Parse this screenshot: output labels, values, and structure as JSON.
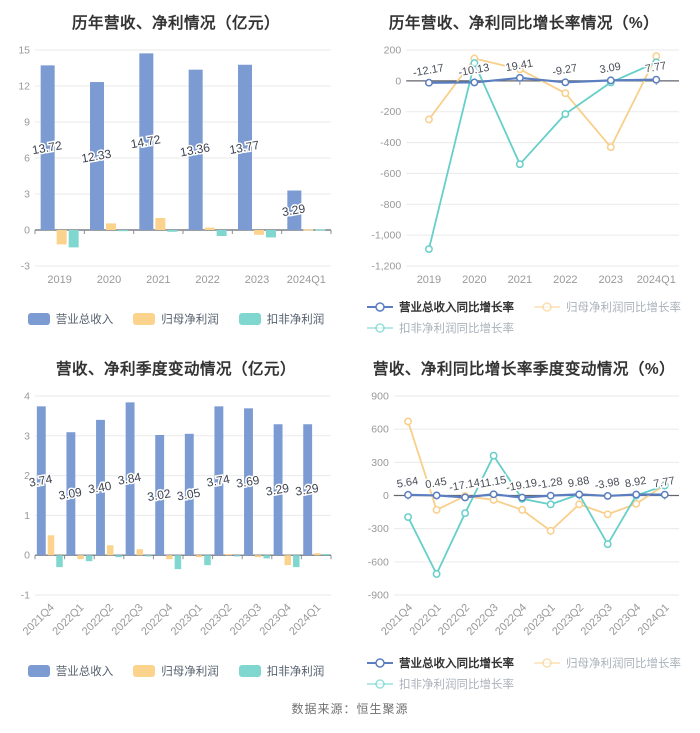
{
  "page": {
    "footer_source": "数据来源：恒生聚源"
  },
  "colors": {
    "revenue_blue": "#7b9bd2",
    "net_profit_yellow": "#fbd38d",
    "non_gaap_teal": "#80d7d0",
    "line_blue": "#5b7ec0",
    "line_orange": "#f8cf8b",
    "line_teal": "#66cfc9",
    "grid": "#eaeaea",
    "axis_text": "#999999",
    "label_text": "#3d4350",
    "zero_axis": "#62666e"
  },
  "chart_data": [
    {
      "id": "annual-amounts",
      "type": "bar",
      "title": "历年营收、净利情况（亿元）",
      "categories": [
        "2019",
        "2020",
        "2021",
        "2022",
        "2023",
        "2024Q1"
      ],
      "series": [
        {
          "name": "营业总收入",
          "color": "#7b9bd2",
          "values": [
            13.72,
            12.33,
            14.72,
            13.36,
            13.77,
            3.29
          ],
          "labels": [
            "13.72",
            "12.33",
            "14.72",
            "13.36",
            "13.77",
            "3.29"
          ]
        },
        {
          "name": "归母净利润",
          "color": "#fbd38d",
          "values": [
            -1.2,
            0.55,
            1.0,
            0.2,
            -0.4,
            0.06
          ]
        },
        {
          "name": "扣非净利润",
          "color": "#80d7d0",
          "values": [
            -1.45,
            -0.1,
            -0.15,
            -0.5,
            -0.62,
            0.05
          ]
        }
      ],
      "ylim": [
        -3,
        15
      ],
      "yticks": [
        {
          "v": 15,
          "label": "15"
        },
        {
          "v": 12,
          "label": "12"
        },
        {
          "v": 9,
          "label": "9"
        },
        {
          "v": 6,
          "label": "6"
        },
        {
          "v": 3,
          "label": "3"
        },
        {
          "v": 0,
          "label": "0"
        },
        {
          "v": -3,
          "label": "-3"
        }
      ],
      "rotate_x_labels": false,
      "legend_rows": [
        [
          0,
          1,
          2
        ]
      ]
    },
    {
      "id": "annual-growth",
      "type": "line",
      "title": "历年营收、净利同比增长率情况（%）",
      "categories": [
        "2019",
        "2020",
        "2021",
        "2022",
        "2023",
        "2024Q1"
      ],
      "series": [
        {
          "name": "营业总收入同比增长率",
          "color": "#5b7ec0",
          "values": [
            -12.17,
            -10.13,
            19.41,
            -9.27,
            3.09,
            7.77
          ],
          "labels": [
            "-12.17",
            "-10.13",
            "19.41",
            "-9.27",
            "3.09",
            "7.77"
          ]
        },
        {
          "name": "归母净利润同比增长率",
          "color": "#f8cf8b",
          "values": [
            -250,
            145,
            75,
            -80,
            -430,
            160
          ]
        },
        {
          "name": "扣非净利润同比增长率",
          "color": "#66cfc9",
          "values": [
            -1090,
            115,
            -540,
            -215,
            -10,
            120
          ]
        }
      ],
      "ylim": [
        -1200,
        200
      ],
      "yticks": [
        {
          "v": 200,
          "label": "200"
        },
        {
          "v": 0,
          "label": "0"
        },
        {
          "v": -200,
          "label": "-200"
        },
        {
          "v": -400,
          "label": "-400"
        },
        {
          "v": -600,
          "label": "-600"
        },
        {
          "v": -800,
          "label": "-800"
        },
        {
          "v": -1000,
          "label": "-1,000"
        },
        {
          "v": -1200,
          "label": "-1,200"
        }
      ],
      "rotate_x_labels": false,
      "legend_rows": [
        [
          0,
          1
        ],
        [
          2
        ]
      ]
    },
    {
      "id": "quarterly-amounts",
      "type": "bar",
      "title": "营收、净利季度变动情况（亿元）",
      "categories": [
        "2021Q4",
        "2022Q1",
        "2022Q2",
        "2022Q3",
        "2022Q4",
        "2023Q1",
        "2023Q2",
        "2023Q3",
        "2023Q4",
        "2024Q1"
      ],
      "series": [
        {
          "name": "营业总收入",
          "color": "#7b9bd2",
          "values": [
            3.74,
            3.09,
            3.4,
            3.84,
            3.02,
            3.05,
            3.74,
            3.69,
            3.29,
            3.29
          ],
          "labels": [
            "3.74",
            "3.09",
            "3.40",
            "3.84",
            "3.02",
            "3.05",
            "3.74",
            "3.69",
            "3.29",
            "3.29"
          ]
        },
        {
          "name": "归母净利润",
          "color": "#fbd38d",
          "values": [
            0.5,
            -0.1,
            0.25,
            0.15,
            -0.1,
            -0.05,
            0.03,
            -0.05,
            -0.25,
            0.05
          ]
        },
        {
          "name": "扣非净利润",
          "color": "#80d7d0",
          "values": [
            -0.3,
            -0.15,
            -0.05,
            -0.02,
            -0.35,
            -0.25,
            -0.02,
            -0.08,
            -0.3,
            0.03
          ]
        }
      ],
      "ylim": [
        -1,
        4
      ],
      "yticks": [
        {
          "v": 4,
          "label": "4"
        },
        {
          "v": 3,
          "label": "3"
        },
        {
          "v": 2,
          "label": "2"
        },
        {
          "v": 1,
          "label": "1"
        },
        {
          "v": 0,
          "label": "0"
        },
        {
          "v": -1,
          "label": "-1"
        }
      ],
      "rotate_x_labels": true,
      "legend_rows": [
        [
          0,
          1,
          2
        ]
      ]
    },
    {
      "id": "quarterly-growth",
      "type": "line",
      "title": "营收、净利同比增长率季度变动情况（%）",
      "categories": [
        "2021Q4",
        "2022Q1",
        "2022Q2",
        "2022Q3",
        "2022Q4",
        "2023Q1",
        "2023Q2",
        "2023Q3",
        "2023Q4",
        "2024Q1"
      ],
      "series": [
        {
          "name": "营业总收入同比增长率",
          "color": "#5b7ec0",
          "values": [
            5.64,
            0.45,
            -17.14,
            11.15,
            -19.19,
            -1.28,
            9.88,
            -3.98,
            8.92,
            7.77
          ],
          "labels": [
            "5.64",
            "0.45",
            "-17.14",
            "11.15",
            "-19.19",
            "-1.28",
            "9.88",
            "-3.98",
            "8.92",
            "7.77"
          ]
        },
        {
          "name": "归母净利润同比增长率",
          "color": "#f8cf8b",
          "values": [
            670,
            -130,
            -5,
            -40,
            -130,
            -320,
            -80,
            -170,
            -75,
            95
          ]
        },
        {
          "name": "扣非净利润同比增长率",
          "color": "#66cfc9",
          "values": [
            -195,
            -710,
            -160,
            360,
            -30,
            -80,
            10,
            -440,
            0,
            90
          ]
        }
      ],
      "ylim": [
        -900,
        900
      ],
      "yticks": [
        {
          "v": 900,
          "label": "900"
        },
        {
          "v": 600,
          "label": "600"
        },
        {
          "v": 300,
          "label": "300"
        },
        {
          "v": 0,
          "label": "0"
        },
        {
          "v": -300,
          "label": "-300"
        },
        {
          "v": -600,
          "label": "-600"
        },
        {
          "v": -900,
          "label": "-900"
        }
      ],
      "rotate_x_labels": true,
      "legend_rows": [
        [
          0,
          1
        ],
        [
          2
        ]
      ]
    }
  ]
}
